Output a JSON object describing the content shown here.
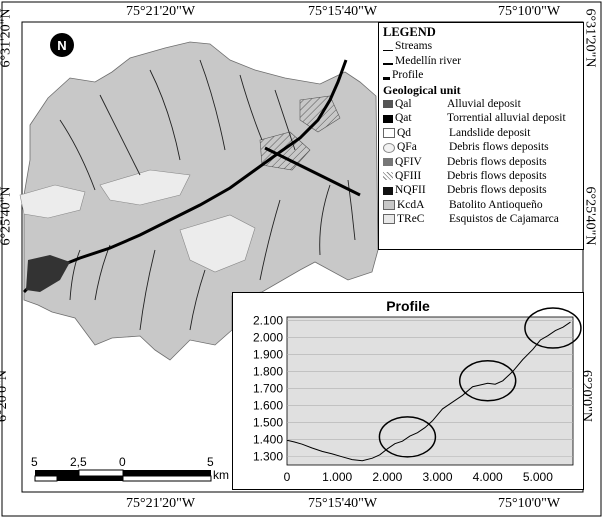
{
  "map": {
    "top_labels": [
      "75°21'20\"W",
      "75°15'40\"W",
      "75°10'0\"W"
    ],
    "bottom_labels": [
      "75°21'20\"W",
      "75°15'40\"W",
      "75°10'0\"W"
    ],
    "left_labels": [
      "6°31'20\"N",
      "6°25'40\"N",
      "6°20'0\"N"
    ],
    "right_labels": [
      "6°31'20\"N",
      "6°25'40\"N",
      "6°20'0\"N"
    ],
    "north_arrow": "N",
    "colors": {
      "basin": "#c8c8c8",
      "frame": "#000000",
      "river": "#000000"
    }
  },
  "legend": {
    "title": "LEGEND",
    "lines": [
      {
        "label": "Streams"
      },
      {
        "label": "Medellín river"
      },
      {
        "label": "Profile"
      }
    ],
    "section": "Geological unit",
    "units": [
      {
        "code": "Qal",
        "desc": "Alluvial deposit"
      },
      {
        "code": "Qat",
        "desc": "Torrential alluvial deposit"
      },
      {
        "code": "Qd",
        "desc": "Landslide deposit"
      },
      {
        "code": "QFa",
        "desc": "Debris flows deposits"
      },
      {
        "code": "QFIV",
        "desc": "Debris flows deposits"
      },
      {
        "code": "QFIII",
        "desc": "Debris flows deposits"
      },
      {
        "code": "NQFII",
        "desc": "Debris flows deposits"
      },
      {
        "code": "KcdA",
        "desc": "Batolito Antioqueño"
      },
      {
        "code": "TReC",
        "desc": "Esquistos de Cajamarca"
      }
    ]
  },
  "scale_bar": {
    "labels": [
      "5",
      "2,5",
      "0",
      "5"
    ],
    "unit": "km"
  },
  "chart_data": {
    "type": "line",
    "title": "Profile",
    "xlabel": "",
    "ylabel": "",
    "xlim": [
      0,
      5700
    ],
    "ylim": [
      1250,
      2120
    ],
    "x_ticks": [
      "0",
      "1.000",
      "2.000",
      "3.000",
      "4.000",
      "5.000"
    ],
    "x_tick_values": [
      0,
      1000,
      2000,
      3000,
      4000,
      5000
    ],
    "y_ticks": [
      "1.300",
      "1.400",
      "1.500",
      "1.600",
      "1.700",
      "1.800",
      "1.900",
      "2.000",
      "2.100"
    ],
    "y_tick_values": [
      1300,
      1400,
      1500,
      1600,
      1700,
      1800,
      1900,
      2000,
      2100
    ],
    "grid": true,
    "x": [
      0,
      150,
      300,
      500,
      700,
      900,
      1100,
      1300,
      1500,
      1700,
      1850,
      2000,
      2150,
      2300,
      2450,
      2600,
      2750,
      2900,
      3100,
      3300,
      3500,
      3700,
      3850,
      4000,
      4150,
      4300,
      4500,
      4700,
      4900,
      5050,
      5200,
      5350,
      5500,
      5650
    ],
    "y": [
      1395,
      1385,
      1372,
      1350,
      1330,
      1315,
      1298,
      1282,
      1275,
      1290,
      1310,
      1345,
      1375,
      1390,
      1420,
      1440,
      1470,
      1510,
      1580,
      1620,
      1660,
      1710,
      1720,
      1730,
      1725,
      1745,
      1800,
      1870,
      1930,
      1985,
      2010,
      2040,
      2060,
      2090
    ],
    "annotations": [
      {
        "shape": "ellipse",
        "x": 2400,
        "y": 1415
      },
      {
        "shape": "ellipse",
        "x": 4000,
        "y": 1745
      },
      {
        "shape": "ellipse",
        "x": 5300,
        "y": 2055
      }
    ]
  }
}
